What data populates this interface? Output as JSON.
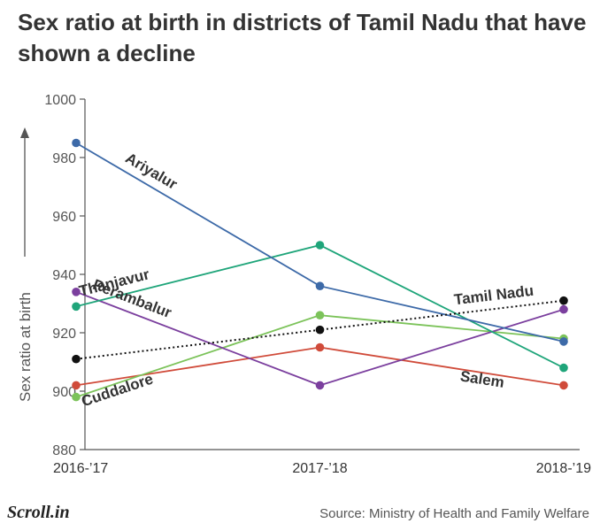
{
  "colors": {
    "Ariyalur": "#3d6aa8",
    "Thanjavur": "#1fa57a",
    "Perambalur": "#7b3f9e",
    "Cuddalore": "#7cc35a",
    "Salem": "#d04b3a",
    "Tamil Nadu": "#111111"
  },
  "chart_data": {
    "type": "line",
    "title": "Sex ratio at birth in districts of Tamil Nadu that have shown a decline",
    "ylabel": "Sex ratio at birth",
    "xlabel": "",
    "categories": [
      "2016-’17",
      "2017-’18",
      "2018-’19"
    ],
    "ylim": [
      880,
      1000
    ],
    "yticks": [
      880,
      900,
      920,
      940,
      960,
      980,
      1000
    ],
    "grid": false,
    "legend": "direct labels on lines",
    "series": [
      {
        "name": "Ariyalur",
        "values": [
          985,
          936,
          917
        ],
        "style": "solid"
      },
      {
        "name": "Thanjavur",
        "values": [
          929,
          950,
          908
        ],
        "style": "solid"
      },
      {
        "name": "Perambalur",
        "values": [
          934,
          902,
          928
        ],
        "style": "solid"
      },
      {
        "name": "Cuddalore",
        "values": [
          898,
          926,
          918
        ],
        "style": "solid"
      },
      {
        "name": "Salem",
        "values": [
          902,
          915,
          902
        ],
        "style": "solid"
      },
      {
        "name": "Tamil Nadu",
        "values": [
          911,
          921,
          931
        ],
        "style": "dotted"
      }
    ]
  },
  "footer": {
    "logo": "Scroll.in",
    "source": "Source: Ministry of Health and Family Welfare"
  }
}
